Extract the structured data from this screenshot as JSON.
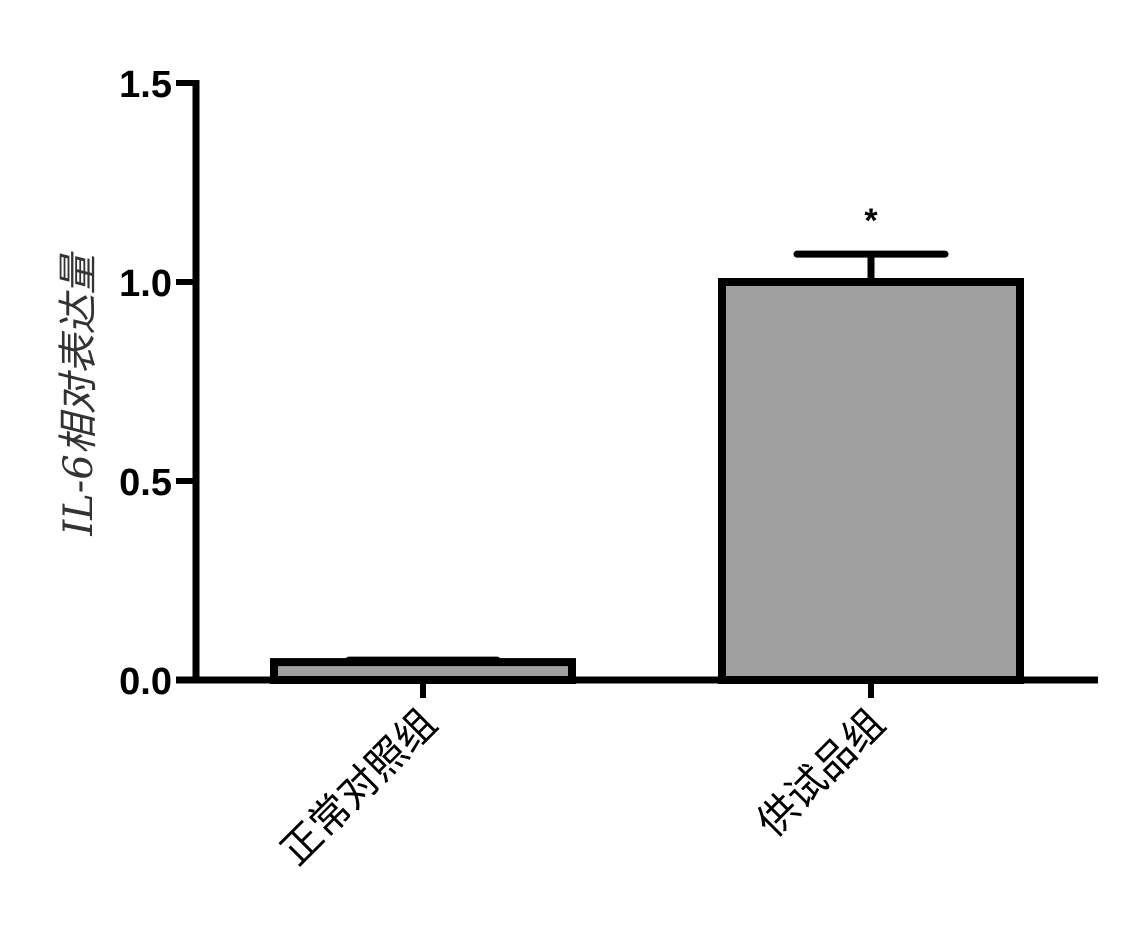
{
  "chart_data": {
    "type": "bar",
    "categories": [
      "正常对照组",
      "供试品组"
    ],
    "values": [
      0.045,
      1.0
    ],
    "errors": [
      0.005,
      0.07
    ],
    "significance": [
      "",
      "*"
    ],
    "ylabel": "IL-6相对表达量",
    "xlabel": "",
    "ylim": [
      0,
      1.5
    ],
    "yticks": [
      "0.0",
      "0.5",
      "1.0",
      "1.5"
    ],
    "bar_color": "#a0a0a0",
    "edge_color": "#000000",
    "grid": false
  }
}
